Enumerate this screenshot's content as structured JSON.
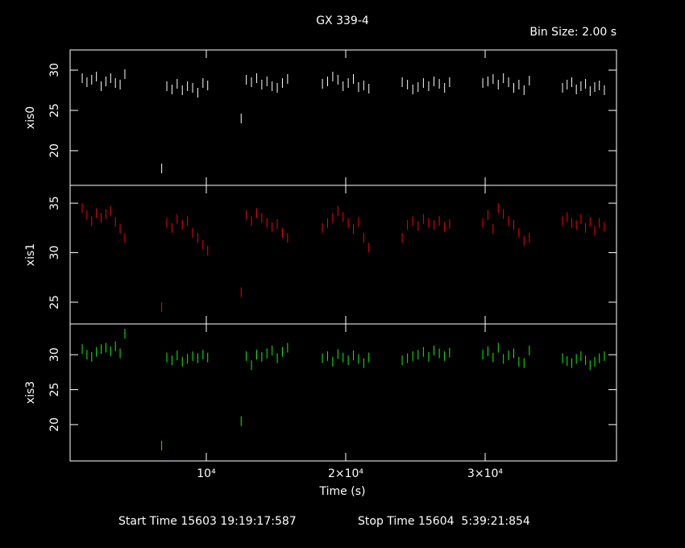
{
  "chart_data": [
    {
      "type": "scatter",
      "title": "GX 339-4",
      "subtitle": "Bin Size: 2.00 s",
      "ylabel": "xis0",
      "color": "#ffffff",
      "xlim": [
        232,
        39420
      ],
      "xticks": [
        10000,
        20000,
        30000
      ],
      "ylim": [
        15.7,
        32.5
      ],
      "yticks": [
        20,
        25,
        30
      ],
      "x": [
        1100,
        1440,
        1780,
        2120,
        2460,
        2800,
        3140,
        3480,
        3820,
        4160,
        6800,
        7170,
        7540,
        7910,
        8280,
        8650,
        9020,
        9390,
        9760,
        10100,
        12500,
        12870,
        13240,
        13610,
        13980,
        14350,
        14720,
        15090,
        15460,
        15830,
        18330,
        18700,
        19070,
        19440,
        19810,
        20180,
        20550,
        20920,
        21290,
        21660,
        24050,
        24430,
        24810,
        25190,
        25570,
        25950,
        26330,
        26710,
        27090,
        27450,
        29830,
        30200,
        30570,
        30940,
        31310,
        31680,
        32050,
        32420,
        32790,
        33170,
        35550,
        35880,
        36210,
        36540,
        36870,
        37200,
        37530,
        37860,
        38190,
        38550
      ],
      "y": [
        29,
        28.5,
        28.8,
        29.2,
        28,
        28.6,
        29,
        28.4,
        28.2,
        29.5,
        17.8,
        28,
        27.6,
        28.3,
        27.5,
        28,
        27.8,
        27.2,
        28.4,
        28.1,
        24,
        28.8,
        28.5,
        29,
        28.2,
        28.6,
        28,
        27.8,
        28.4,
        28.9,
        28.3,
        28.6,
        29.2,
        28.8,
        28,
        28.4,
        28.9,
        27.9,
        28.1,
        27.7,
        28.5,
        28.2,
        27.6,
        27.9,
        28.4,
        28,
        28.6,
        28.3,
        27.8,
        28.5,
        28.4,
        28.6,
        28.9,
        28.2,
        29,
        28.5,
        27.8,
        28.2,
        27.5,
        28.7,
        27.8,
        28.2,
        28.5,
        27.6,
        28,
        28.3,
        27.4,
        27.9,
        28.1,
        27.5
      ]
    },
    {
      "type": "scatter",
      "ylabel": "xis1",
      "color": "#ff0000",
      "xlim": [
        232,
        39420
      ],
      "xticks": [
        10000,
        20000,
        30000
      ],
      "ylim": [
        22.8,
        36.8
      ],
      "yticks": [
        25,
        30,
        35
      ],
      "x": [
        1100,
        1440,
        1780,
        2120,
        2460,
        2800,
        3140,
        3480,
        3820,
        4160,
        6800,
        7170,
        7540,
        7910,
        8280,
        8650,
        9020,
        9390,
        9760,
        10100,
        12500,
        12870,
        13240,
        13610,
        13980,
        14350,
        14720,
        15090,
        15460,
        15830,
        18330,
        18700,
        19070,
        19440,
        19810,
        20180,
        20550,
        20920,
        21290,
        21660,
        24050,
        24430,
        24810,
        25190,
        25570,
        25950,
        26330,
        26710,
        27090,
        27450,
        29830,
        30200,
        30570,
        30940,
        31310,
        31680,
        32050,
        32420,
        32790,
        33170,
        35550,
        35880,
        36210,
        36540,
        36870,
        37200,
        37530,
        37860,
        38190,
        38550
      ],
      "y": [
        34.5,
        33.8,
        33.2,
        34,
        33.5,
        33.9,
        34.2,
        33.1,
        32.4,
        31.5,
        24.5,
        33,
        32.5,
        33.4,
        32.8,
        33.2,
        32,
        31.5,
        30.8,
        30.2,
        26,
        33.8,
        33.2,
        34,
        33.5,
        33,
        32.6,
        32.9,
        32,
        31.5,
        32.5,
        33,
        33.5,
        34.2,
        33.6,
        33,
        32.4,
        33.1,
        31.5,
        30.5,
        31.5,
        32.8,
        33.2,
        32.7,
        33.4,
        33,
        32.8,
        33.2,
        32.6,
        32.9,
        33,
        33.8,
        32.4,
        34.5,
        33.9,
        33.2,
        32.8,
        32,
        31.2,
        31.5,
        33.2,
        33.6,
        33,
        32.8,
        33.4,
        32.5,
        33.1,
        32.2,
        33,
        32.6
      ]
    },
    {
      "type": "scatter",
      "ylabel": "xis3",
      "color": "#00ff00",
      "xlabel": "Time (s)",
      "notes": [
        "Start Time 15603 19:19:17:587",
        "Stop Time 15604  5:39:21:854"
      ],
      "xlim": [
        232,
        39420
      ],
      "xticks": [
        {
          "value": 10000,
          "label": "10⁴"
        },
        {
          "value": 20000,
          "label": "2×10⁴"
        },
        {
          "value": 30000,
          "label": "3×10⁴"
        }
      ],
      "ylim": [
        14.8,
        34.4
      ],
      "yticks": [
        20,
        25,
        30
      ],
      "x": [
        1100,
        1440,
        1780,
        2120,
        2460,
        2800,
        3140,
        3480,
        3820,
        4160,
        6800,
        7170,
        7540,
        7910,
        8280,
        8650,
        9020,
        9390,
        9760,
        10100,
        12500,
        12870,
        13240,
        13610,
        13980,
        14350,
        14720,
        15090,
        15460,
        15830,
        18330,
        18700,
        19070,
        19440,
        19810,
        20180,
        20550,
        20920,
        21290,
        21660,
        24050,
        24430,
        24810,
        25190,
        25570,
        25950,
        26330,
        26710,
        27090,
        27450,
        29830,
        30200,
        30570,
        30940,
        31310,
        31680,
        32050,
        32420,
        32790,
        33170,
        35550,
        35880,
        36210,
        36540,
        36870,
        37200,
        37530,
        37860,
        38190,
        38550
      ],
      "y": [
        30.8,
        30,
        29.7,
        30.4,
        30.8,
        31,
        30.5,
        31.2,
        30.2,
        33,
        17,
        29.6,
        29.2,
        29.9,
        29,
        29.4,
        29.8,
        29.5,
        30,
        29.6,
        20.5,
        29.8,
        28.5,
        30,
        29.7,
        30.2,
        30.6,
        29.5,
        30.4,
        31,
        29.5,
        29.8,
        29,
        30.1,
        29.6,
        29.2,
        29.9,
        29.4,
        28.8,
        29.6,
        29.2,
        29.5,
        29.8,
        30,
        30.4,
        29.7,
        30.6,
        30.2,
        29.8,
        30.3,
        30,
        30.5,
        29.6,
        31,
        29.4,
        29.9,
        30.2,
        29,
        28.8,
        30.6,
        29.5,
        29.1,
        28.8,
        29.4,
        29.8,
        29.2,
        28.5,
        29,
        29.5,
        29.8
      ]
    }
  ]
}
